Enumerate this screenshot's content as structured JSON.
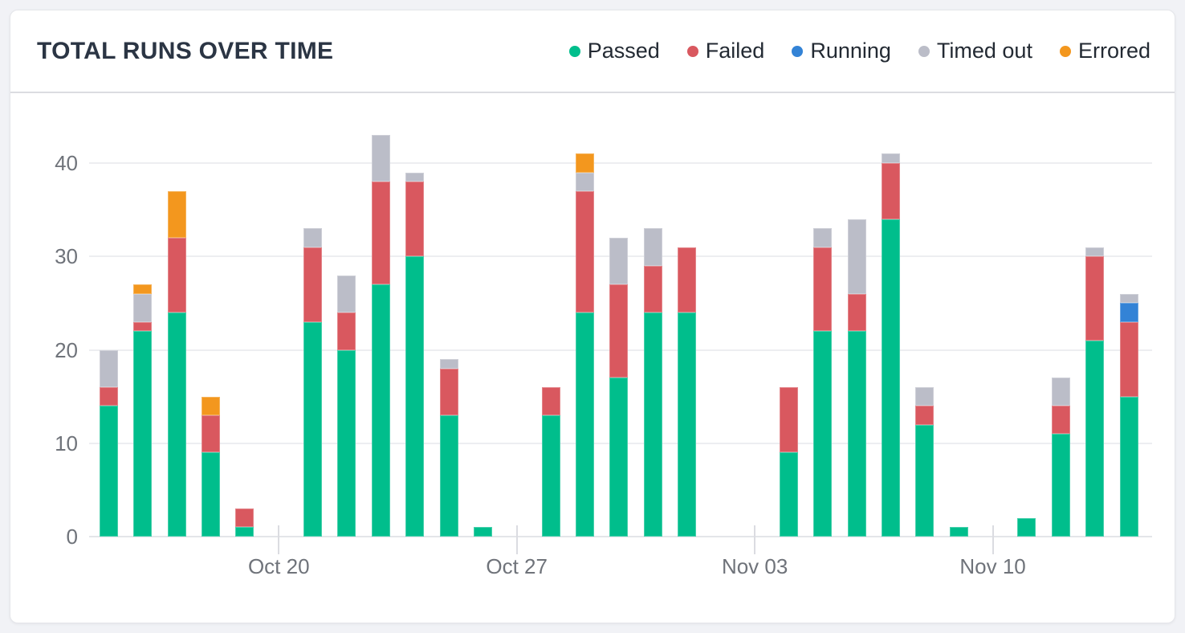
{
  "header": {
    "title": "TOTAL RUNS OVER TIME"
  },
  "legend": {
    "items": [
      {
        "label": "Passed",
        "color": "#00BE8C"
      },
      {
        "label": "Failed",
        "color": "#D9585F"
      },
      {
        "label": "Running",
        "color": "#3383D6"
      },
      {
        "label": "Timed out",
        "color": "#BBBDC8"
      },
      {
        "label": "Errored",
        "color": "#F3971E"
      }
    ]
  },
  "chart_data": {
    "type": "bar",
    "stacked": true,
    "title": "TOTAL RUNS OVER TIME",
    "xlabel": "",
    "ylabel": "",
    "ylim": [
      0,
      44
    ],
    "yticks": [
      0,
      10,
      20,
      30,
      40
    ],
    "grid": "horizontal",
    "legend_position": "top-right",
    "num_slots": 31,
    "x_ticks": [
      {
        "label": "Oct 20",
        "slot": 5
      },
      {
        "label": "Oct 27",
        "slot": 12
      },
      {
        "label": "Nov 03",
        "slot": 19
      },
      {
        "label": "Nov 10",
        "slot": 26
      }
    ],
    "series": [
      {
        "name": "Passed",
        "color": "#00BE8C",
        "values": [
          14,
          22,
          24,
          9,
          1,
          0,
          23,
          20,
          27,
          30,
          13,
          1,
          0,
          13,
          24,
          17,
          24,
          24,
          0,
          0,
          9,
          22,
          22,
          34,
          12,
          1,
          0,
          2,
          11,
          21,
          15
        ]
      },
      {
        "name": "Failed",
        "color": "#D9585F",
        "values": [
          2,
          1,
          8,
          4,
          2,
          0,
          8,
          4,
          11,
          8,
          5,
          0,
          0,
          3,
          13,
          10,
          5,
          7,
          0,
          0,
          7,
          9,
          4,
          6,
          2,
          0,
          0,
          0,
          3,
          9,
          8
        ]
      },
      {
        "name": "Running",
        "color": "#3383D6",
        "values": [
          0,
          0,
          0,
          0,
          0,
          0,
          0,
          0,
          0,
          0,
          0,
          0,
          0,
          0,
          0,
          0,
          0,
          0,
          0,
          0,
          0,
          0,
          0,
          0,
          0,
          0,
          0,
          0,
          0,
          0,
          2
        ]
      },
      {
        "name": "Timed out",
        "color": "#BBBDC8",
        "values": [
          4,
          3,
          0,
          0,
          0,
          0,
          2,
          4,
          5,
          1,
          1,
          0,
          0,
          0,
          2,
          5,
          4,
          0,
          0,
          0,
          0,
          2,
          8,
          1,
          2,
          0,
          0,
          0,
          3,
          1,
          1
        ]
      },
      {
        "name": "Errored",
        "color": "#F3971E",
        "values": [
          0,
          1,
          5,
          2,
          0,
          0,
          0,
          0,
          0,
          0,
          0,
          0,
          0,
          0,
          2,
          0,
          0,
          0,
          0,
          0,
          0,
          0,
          0,
          0,
          0,
          0,
          0,
          0,
          0,
          0,
          0
        ]
      }
    ],
    "totals": [
      20,
      27,
      37,
      15,
      3,
      0,
      33,
      28,
      43,
      39,
      19,
      1,
      0,
      16,
      41,
      32,
      33,
      31,
      0,
      0,
      16,
      33,
      34,
      41,
      16,
      1,
      0,
      2,
      17,
      31,
      26
    ]
  }
}
